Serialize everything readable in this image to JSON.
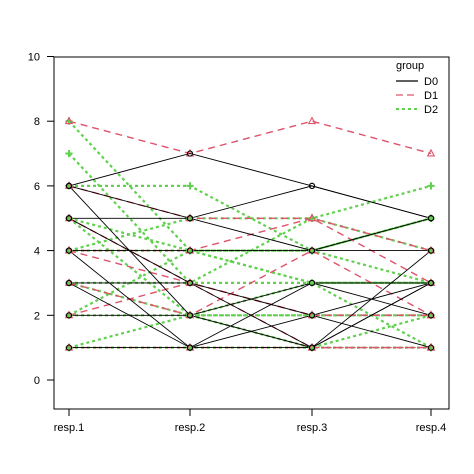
{
  "chart_data": {
    "type": "line",
    "categories": [
      "resp.1",
      "resp.2",
      "resp.3",
      "resp.4"
    ],
    "ylim": [
      -0.8,
      10
    ],
    "yticks": [
      0,
      2,
      4,
      6,
      8,
      10
    ],
    "grid": false,
    "legend_position": "top-right",
    "legend": {
      "title": "group",
      "entries": [
        {
          "name": "D0",
          "color": "#000000",
          "dash": "solid"
        },
        {
          "name": "D1",
          "color": "#DF536B",
          "dash": "dashed"
        },
        {
          "name": "D2",
          "color": "#61D04F",
          "dash": "dotted"
        }
      ]
    },
    "series": [
      {
        "group": "D0",
        "values": [
          6,
          7,
          6,
          5
        ]
      },
      {
        "group": "D0",
        "values": [
          6,
          5,
          6,
          5
        ]
      },
      {
        "group": "D0",
        "values": [
          6,
          2,
          1,
          3
        ]
      },
      {
        "group": "D0",
        "values": [
          5,
          5,
          4,
          5
        ]
      },
      {
        "group": "D0",
        "values": [
          5,
          3,
          2,
          1
        ]
      },
      {
        "group": "D0",
        "values": [
          4,
          4,
          4,
          4
        ]
      },
      {
        "group": "D0",
        "values": [
          4,
          1,
          3,
          2
        ]
      },
      {
        "group": "D0",
        "values": [
          3,
          3,
          1,
          3
        ]
      },
      {
        "group": "D0",
        "values": [
          3,
          1,
          1,
          4
        ]
      },
      {
        "group": "D0",
        "values": [
          2,
          2,
          3,
          3
        ]
      },
      {
        "group": "D0",
        "values": [
          1,
          1,
          2,
          3
        ]
      },
      {
        "group": "D1",
        "values": [
          8,
          7,
          8,
          7
        ]
      },
      {
        "group": "D1",
        "values": [
          6,
          5,
          5,
          4
        ]
      },
      {
        "group": "D1",
        "values": [
          5,
          3,
          2,
          2
        ]
      },
      {
        "group": "D1",
        "values": [
          4,
          3,
          1,
          1
        ]
      },
      {
        "group": "D1",
        "values": [
          4,
          4,
          5,
          3
        ]
      },
      {
        "group": "D1",
        "values": [
          3,
          2,
          4,
          2
        ]
      },
      {
        "group": "D1",
        "values": [
          2,
          3,
          2,
          2
        ]
      },
      {
        "group": "D1",
        "values": [
          1,
          1,
          1,
          1
        ]
      },
      {
        "group": "D2",
        "values": [
          8,
          4,
          4,
          5
        ]
      },
      {
        "group": "D2",
        "values": [
          7,
          3,
          5,
          6
        ]
      },
      {
        "group": "D2",
        "values": [
          6,
          6,
          4,
          3
        ]
      },
      {
        "group": "D2",
        "values": [
          5,
          4,
          3,
          3
        ]
      },
      {
        "group": "D2",
        "values": [
          5,
          2,
          2,
          2
        ]
      },
      {
        "group": "D2",
        "values": [
          4,
          5,
          5,
          4
        ]
      },
      {
        "group": "D2",
        "values": [
          4,
          4,
          4,
          5
        ]
      },
      {
        "group": "D2",
        "values": [
          3,
          3,
          3,
          3
        ]
      },
      {
        "group": "D2",
        "values": [
          3,
          2,
          3,
          3
        ]
      },
      {
        "group": "D2",
        "values": [
          2,
          2,
          2,
          2
        ]
      },
      {
        "group": "D2",
        "values": [
          2,
          4,
          3,
          1
        ]
      },
      {
        "group": "D2",
        "values": [
          1,
          1,
          1,
          1
        ]
      },
      {
        "group": "D2",
        "values": [
          1,
          2,
          1,
          2
        ]
      }
    ]
  }
}
